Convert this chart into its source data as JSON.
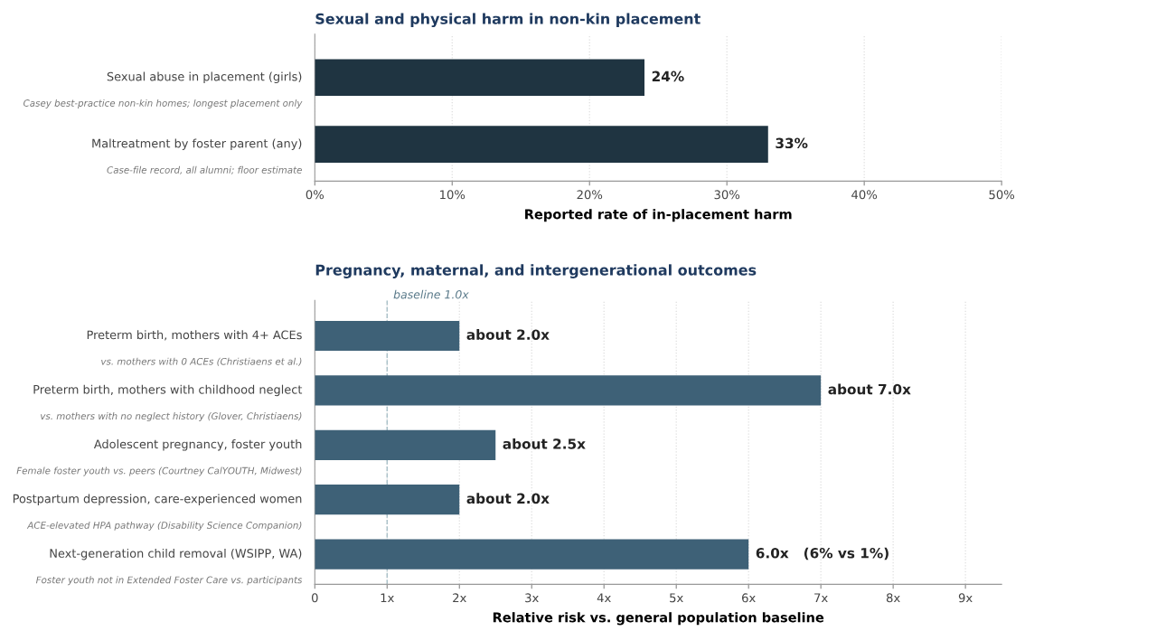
{
  "chart_data": [
    {
      "type": "bar",
      "orientation": "horizontal",
      "title": "Sexual and physical harm in non-kin placement",
      "xlabel": "Reported rate of in-placement harm",
      "categories": [
        "Sexual abuse in placement (girls)\nCasey best-practice non-kin homes; longest placement only",
        "Maltreatment by foster parent (any)\nCase-file record, all alumni; floor estimate"
      ],
      "values": [
        24,
        33
      ],
      "color": "#1f3441",
      "value_labels": [
        "24%",
        "33%"
      ],
      "xlim": [
        0,
        50
      ],
      "xticks": [
        {
          "value": 0,
          "label": "0%"
        },
        {
          "value": 10,
          "label": "10%"
        },
        {
          "value": 20,
          "label": "20%"
        },
        {
          "value": 30,
          "label": "30%"
        },
        {
          "value": 40,
          "label": "40%"
        },
        {
          "value": 50,
          "label": "50%"
        }
      ],
      "grid": "x"
    },
    {
      "type": "bar",
      "orientation": "horizontal",
      "title": "Pregnancy, maternal, and intergenerational outcomes",
      "xlabel": "Relative risk vs. general population baseline",
      "categories": [
        "Preterm birth, mothers with 4+ ACEs\nvs. mothers with 0 ACEs (Christiaens et al.)",
        "Preterm birth, mothers with childhood neglect\nvs. mothers with no neglect history (Glover, Christiaens)",
        "Adolescent pregnancy, foster youth\nFemale foster youth vs. peers (Courtney CalYOUTH, Midwest)",
        "Postpartum depression, care-experienced women\nACE-elevated HPA pathway (Disability Science Companion)",
        "Next-generation child removal (WSIPP, WA)\nFoster youth not in Extended Foster Care vs. participants"
      ],
      "values": [
        2.0,
        7.0,
        2.5,
        2.0,
        6.0
      ],
      "color": "#3e6177",
      "value_labels": [
        "about 2.0x",
        "about 7.0x",
        "about 2.5x",
        "about 2.0x",
        "6.0x   (6% vs 1%)"
      ],
      "xlim": [
        0,
        9.5
      ],
      "xticks": [
        0,
        {
          "value": 1,
          "label": "1x"
        },
        {
          "value": 2,
          "label": "2x"
        },
        {
          "value": 3,
          "label": "3x"
        },
        {
          "value": 4,
          "label": "4x"
        },
        {
          "value": 5,
          "label": "5x"
        },
        {
          "value": 6,
          "label": "6x"
        },
        {
          "value": 7,
          "label": "7x"
        },
        {
          "value": 8,
          "label": "8x"
        },
        {
          "value": 9,
          "label": "9x"
        }
      ],
      "ref_lines": [
        {
          "axis": "x",
          "value": 1,
          "label": "baseline 1.0x",
          "color": "#a9c0c8",
          "line_style": "dashed"
        }
      ],
      "grid": "x"
    }
  ]
}
